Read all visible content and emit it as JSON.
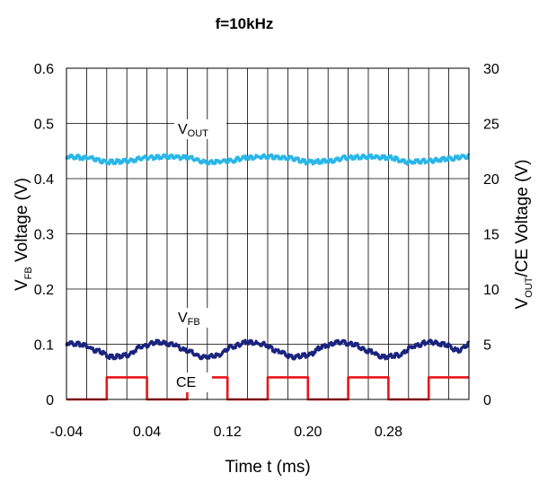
{
  "chart_data": {
    "type": "line",
    "title": "f=10kHz",
    "xlabel": "Time t (ms)",
    "ylabel_left": {
      "main": "V",
      "sub": "FB",
      "rest": " Voltage (V)"
    },
    "ylabel_right": {
      "main": "V",
      "sub": "OUT",
      "rest": "/CE Voltage (V)"
    },
    "xlim": [
      -0.04,
      0.36
    ],
    "ylim_left": [
      0,
      0.6
    ],
    "ylim_right": [
      0,
      30
    ],
    "x_ticks": [
      -0.04,
      0.04,
      0.12,
      0.2,
      0.28
    ],
    "x_tick_labels": [
      "-0.04",
      "0.04",
      "0.12",
      "0.20",
      "0.28"
    ],
    "y_left_ticks": [
      "0",
      "0.1",
      "0.2",
      "0.3",
      "0.4",
      "0.5",
      "0.6"
    ],
    "y_right_ticks": [
      "0",
      "5",
      "10",
      "15",
      "20",
      "25",
      "30"
    ],
    "grid": true,
    "series": [
      {
        "name": "VOUT",
        "label": {
          "main": "V",
          "sub": "OUT"
        },
        "axis": "right",
        "color": "#29b6e8",
        "x": [
          -0.04,
          -0.02,
          0.0,
          0.02,
          0.04,
          0.06,
          0.08,
          0.1,
          0.12,
          0.14,
          0.16,
          0.18,
          0.2,
          0.22,
          0.24,
          0.26,
          0.28,
          0.3,
          0.32,
          0.34,
          0.36
        ],
        "values": [
          22.0,
          21.9,
          21.5,
          21.6,
          21.9,
          22.0,
          21.9,
          21.5,
          21.6,
          21.9,
          22.0,
          21.9,
          21.5,
          21.6,
          21.9,
          22.0,
          21.9,
          21.5,
          21.6,
          21.8,
          22.0
        ]
      },
      {
        "name": "VFB",
        "label": {
          "main": "V",
          "sub": "FB"
        },
        "axis": "left",
        "color": "#1a237e",
        "x": [
          -0.04,
          -0.025,
          -0.01,
          0.005,
          0.02,
          0.035,
          0.05,
          0.065,
          0.08,
          0.095,
          0.11,
          0.125,
          0.14,
          0.155,
          0.17,
          0.185,
          0.2,
          0.215,
          0.23,
          0.245,
          0.26,
          0.275,
          0.29,
          0.305,
          0.32,
          0.335,
          0.35,
          0.36
        ],
        "values": [
          0.102,
          0.1,
          0.088,
          0.077,
          0.08,
          0.096,
          0.104,
          0.1,
          0.088,
          0.077,
          0.08,
          0.096,
          0.104,
          0.1,
          0.088,
          0.077,
          0.08,
          0.096,
          0.104,
          0.1,
          0.088,
          0.077,
          0.08,
          0.096,
          0.104,
          0.1,
          0.088,
          0.1
        ]
      },
      {
        "name": "CE",
        "label": {
          "main": "CE",
          "sub": ""
        },
        "axis": "right",
        "color": "#e8151b",
        "step": true,
        "x": [
          -0.04,
          0.0,
          0.0,
          0.04,
          0.04,
          0.08,
          0.08,
          0.12,
          0.12,
          0.16,
          0.16,
          0.2,
          0.2,
          0.24,
          0.24,
          0.28,
          0.28,
          0.32,
          0.32,
          0.36
        ],
        "values": [
          0,
          0,
          2,
          2,
          0,
          0,
          2,
          2,
          0,
          0,
          2,
          2,
          0,
          0,
          2,
          2,
          0,
          0,
          2,
          2
        ]
      }
    ]
  }
}
